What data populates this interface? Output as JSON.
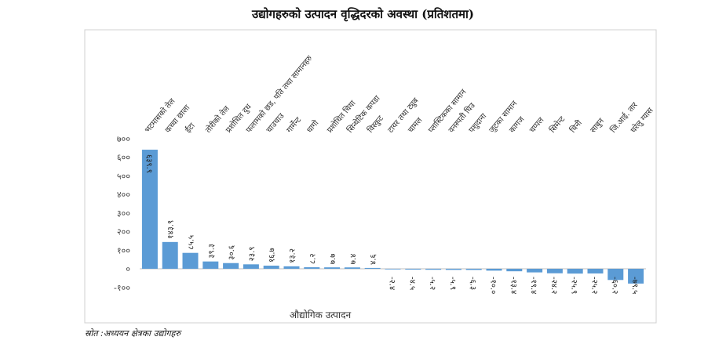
{
  "chart_data": {
    "type": "bar",
    "title": "उद्योगहरुको उत्पादन वृद्धिदरको अवस्था (प्रतिशतमा)",
    "xlabel": "औद्योगिक उत्पादन",
    "ylabel": "",
    "ylim": [
      -100,
      700
    ],
    "yticks": [
      -100,
      0,
      100,
      200,
      300,
      400,
      500,
      600,
      700
    ],
    "ytick_labels": [
      "-१००",
      "०",
      "१००",
      "२००",
      "३००",
      "४००",
      "५००",
      "६००",
      "७००"
    ],
    "grid": false,
    "legend": "none",
    "bar_color": "#5b9bd5",
    "categories": [
      "भटमासको तेल",
      "कच्चा छाला",
      "ईंटा",
      "तोरीको तेल",
      "प्रशोधित दुध",
      "फलामको छड, पति तथा सामानहरु",
      "चाउचाउ",
      "गार्मेन्ट",
      "धागो",
      "प्रशोधित चिया",
      "सिन्थेटिक कपडा",
      "विस्कुट",
      "टायर तथा ट्युब",
      "चामल",
      "प्लास्टिकका सामान",
      "वनस्पती घिउ",
      "पशुदाना",
      "जुटका सामान",
      "कागज",
      "चप्पल",
      "सिमेन्ट",
      "चिनी",
      "साबुन",
      "जि.आई. तार",
      "घरेलु ग्यास"
    ],
    "values": [
      639.9,
      143.9,
      85.5,
      39.3,
      30.6,
      23.9,
      16.7,
      13.2,
      8.2,
      7.7,
      7.4,
      4.6,
      -2.4,
      -4.5,
      -5.2,
      -5.9,
      -6.3,
      -10.0,
      -13.4,
      -19.4,
      -24.2,
      -25.9,
      -25.2,
      -60.2,
      -79.5
    ],
    "value_labels": [
      "६३९.९",
      "१४३.९",
      "८५.५",
      "३९.३",
      "३०.६",
      "२३.९",
      "१६.७",
      "१३.२",
      "८.२",
      "७.७",
      "७.४",
      "४.६",
      "-२.४",
      "-४.५",
      "-५.२",
      "-५.९",
      "-६.३",
      "-१०.०",
      "-१३.४",
      "-१९.४",
      "-२४.२",
      "-२५.९",
      "-२५.२",
      "-६०.२",
      "-७९.५"
    ]
  },
  "source_note": "स्रोत :अध्ययन क्षेत्रका उद्योगहरु"
}
